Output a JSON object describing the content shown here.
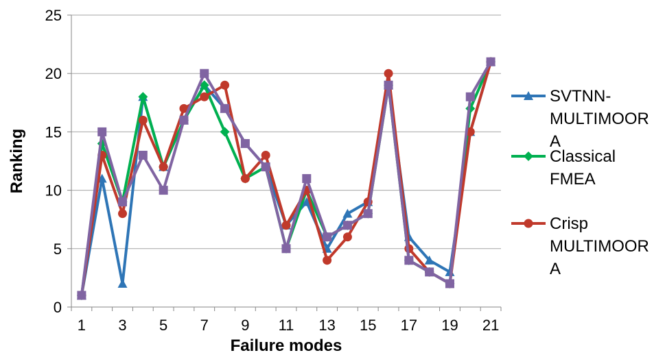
{
  "chart_data": {
    "type": "line",
    "xlabel": "Failure modes",
    "ylabel": "Ranking",
    "ylim": [
      0,
      25
    ],
    "yticks": [
      0,
      5,
      10,
      15,
      20,
      25
    ],
    "x": [
      1,
      2,
      3,
      4,
      5,
      6,
      7,
      8,
      9,
      10,
      11,
      12,
      13,
      14,
      15,
      16,
      17,
      18,
      19,
      20,
      21
    ],
    "xtick_labels": [
      "1",
      "3",
      "5",
      "7",
      "9",
      "11",
      "13",
      "15",
      "17",
      "19",
      "21"
    ],
    "grid": "horizontal",
    "legend_position": "right",
    "series": [
      {
        "name": "SVTNN-MULTIMOORA",
        "legend_lines": [
          "SVTNN-",
          "MULTIMOOR",
          "A"
        ],
        "color": "#2E75B6",
        "marker": "triangle",
        "values": [
          1,
          11,
          2,
          18,
          12,
          16,
          19,
          17,
          14,
          12,
          7,
          9,
          5,
          8,
          9,
          19,
          6,
          4,
          3,
          15,
          21
        ]
      },
      {
        "name": "Classical FMEA",
        "legend_lines": [
          "Classical",
          "FMEA"
        ],
        "color": "#00B050",
        "marker": "diamond",
        "values": [
          1,
          14,
          9,
          18,
          12,
          16,
          19,
          15,
          11,
          12,
          5,
          10,
          6,
          7,
          8,
          19,
          4,
          3,
          2,
          17,
          21
        ]
      },
      {
        "name": "Crisp MULTIMOORA",
        "legend_lines": [
          "Crisp",
          "MULTIMOOR",
          "A"
        ],
        "color": "#C0392B",
        "marker": "circle",
        "values": [
          1,
          13,
          8,
          16,
          12,
          17,
          18,
          19,
          11,
          13,
          7,
          10,
          4,
          6,
          9,
          20,
          5,
          3,
          2,
          15,
          21
        ]
      },
      {
        "name": "",
        "legend_lines": [],
        "color": "#8064A2",
        "marker": "square",
        "values": [
          1,
          15,
          9,
          13,
          10,
          16,
          20,
          17,
          14,
          12,
          5,
          11,
          6,
          7,
          8,
          19,
          4,
          3,
          2,
          18,
          21
        ]
      }
    ]
  }
}
